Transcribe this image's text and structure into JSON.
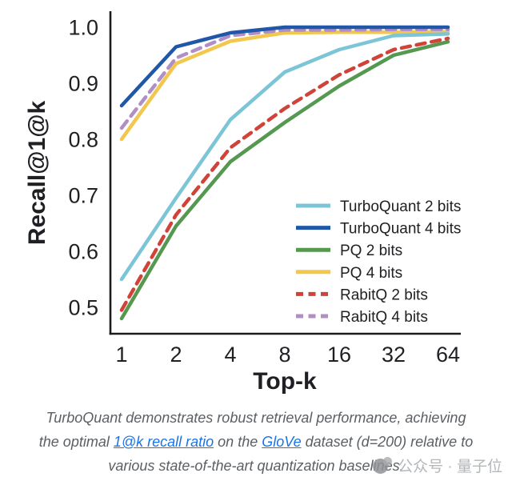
{
  "chart_data": {
    "type": "line",
    "title": "",
    "xlabel": "Top-k",
    "ylabel": "Recall@1@k",
    "x_scale": "log2",
    "x": [
      1,
      2,
      4,
      8,
      16,
      32,
      64
    ],
    "x_tick_labels": [
      "1",
      "2",
      "4",
      "8",
      "16",
      "32",
      "64"
    ],
    "y_tick_labels": [
      "1.0",
      "0.9",
      "0.8",
      "0.7",
      "0.6",
      "0.5"
    ],
    "ylim": [
      0.45,
      1.02
    ],
    "grid": false,
    "legend_position": "inside lower-right",
    "series": [
      {
        "name": "TurboQuant 2 bits",
        "color": "#7cc5d7",
        "style": "solid",
        "values": [
          0.55,
          0.695,
          0.835,
          0.92,
          0.96,
          0.985,
          0.988
        ]
      },
      {
        "name": "TurboQuant 4 bits",
        "color": "#2057a7",
        "style": "solid",
        "values": [
          0.86,
          0.965,
          0.99,
          1.0,
          1.0,
          1.0,
          1.0
        ]
      },
      {
        "name": "PQ 2 bits",
        "color": "#55984f",
        "style": "solid",
        "values": [
          0.48,
          0.645,
          0.76,
          0.83,
          0.895,
          0.95,
          0.974
        ]
      },
      {
        "name": "PQ 4 bits",
        "color": "#f2c74d",
        "style": "solid",
        "values": [
          0.8,
          0.935,
          0.975,
          0.99,
          0.991,
          0.991,
          0.992
        ]
      },
      {
        "name": "RabitQ 2 bits",
        "color": "#cf4338",
        "style": "dashed",
        "values": [
          0.495,
          0.665,
          0.785,
          0.855,
          0.915,
          0.96,
          0.98
        ]
      },
      {
        "name": "RabitQ 4 bits",
        "color": "#b08ec6",
        "style": "dashed",
        "values": [
          0.82,
          0.945,
          0.985,
          0.995,
          0.995,
          0.996,
          0.996
        ]
      }
    ]
  },
  "caption": {
    "lines": [
      {
        "segments": [
          {
            "t": "TurboQuant demonstrates robust retrieval performance, achieving",
            "link": false
          }
        ]
      },
      {
        "segments": [
          {
            "t": "the optimal ",
            "link": false
          },
          {
            "t": "1@k recall ratio",
            "link": true
          },
          {
            "t": " on the ",
            "link": false
          },
          {
            "t": "GloVe",
            "link": true
          },
          {
            "t": " dataset (d=200) relative to",
            "link": false
          }
        ]
      },
      {
        "segments": [
          {
            "t": "various state-of-the-art quantization baselines.",
            "link": false
          }
        ]
      }
    ]
  },
  "watermark": {
    "text": "公众号 · 量子位"
  }
}
